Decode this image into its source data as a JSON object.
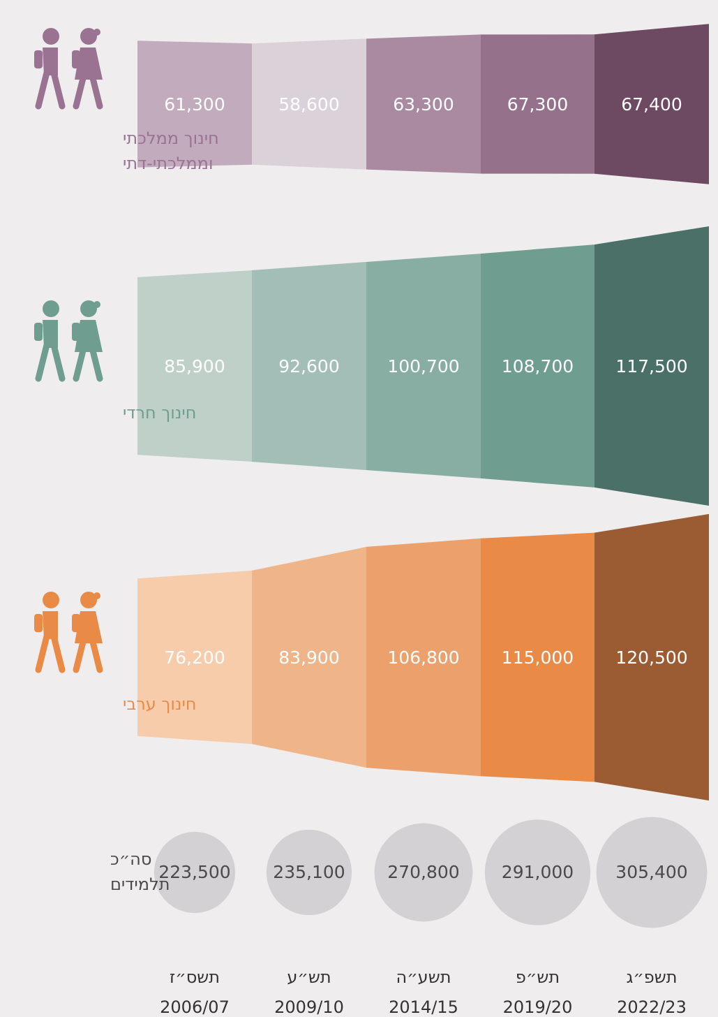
{
  "chart_data": {
    "type": "band",
    "categories": [
      "תשס״ז",
      "תש״ע",
      "תשע״ה",
      "תש״פ",
      "תשפ״ג"
    ],
    "years": [
      "2006/07",
      "2009/10",
      "2014/15",
      "2019/20",
      "2022/23"
    ],
    "series": [
      {
        "name": [
          "חינוך ממלכתי",
          "וממלכתי-דתי"
        ],
        "color": "#9a7393",
        "colors": [
          "#c2abbd",
          "#dbd1d8",
          "#aa8aa0",
          "#96718b",
          "#6e4a62"
        ],
        "values": [
          61300,
          58600,
          63300,
          67300,
          67400
        ],
        "value_labels": [
          "61,300",
          "58,600",
          "63,300",
          "67,300",
          "67,400"
        ]
      },
      {
        "name": [
          "חינוך חרדי"
        ],
        "color": "#6f9e90",
        "colors": [
          "#bfd0c9",
          "#a3beb6",
          "#88aea3",
          "#6f9d90",
          "#4a7067"
        ],
        "values": [
          85900,
          92600,
          100700,
          108700,
          117500
        ],
        "value_labels": [
          "85,900",
          "92,600",
          "100,700",
          "108,700",
          "117,500"
        ]
      },
      {
        "name": [
          "חינוך ערבי"
        ],
        "color": "#e98b47",
        "colors": [
          "#f6ccab",
          "#f0b489",
          "#eca06c",
          "#e98b47",
          "#9b5b33"
        ],
        "values": [
          76200,
          83900,
          106800,
          115000,
          120500
        ],
        "value_labels": [
          "76,200",
          "83,900",
          "106,800",
          "115,000",
          "120,500"
        ]
      }
    ],
    "total": {
      "name": [
        "סה״כ",
        "תלמידים"
      ],
      "color": "#d3d1d3",
      "values": [
        223500,
        235100,
        270800,
        291000,
        305400
      ],
      "value_labels": [
        "223,500",
        "235,100",
        "270,800",
        "291,000",
        "305,400"
      ]
    }
  }
}
